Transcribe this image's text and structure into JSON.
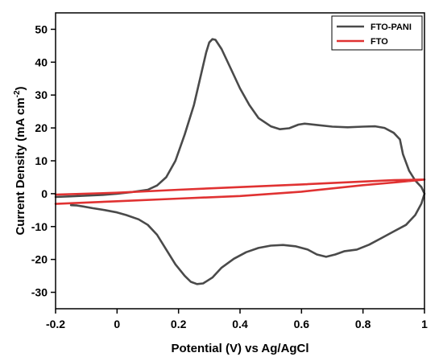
{
  "chart_data": {
    "type": "line",
    "title": "",
    "xlabel": "Potential (V) vs Ag/AgCl",
    "ylabel_main": "Current Density (mA cm",
    "ylabel_sup": "-2",
    "ylabel_end": ")",
    "xlim": [
      -0.2,
      1.0
    ],
    "ylim": [
      -35,
      55
    ],
    "xticks": [
      -0.2,
      0,
      0.2,
      0.4,
      0.6,
      0.8,
      1.0
    ],
    "xtick_labels": [
      "-0.2",
      "0",
      "0.2",
      "0.4",
      "0.6",
      "0.8",
      "1"
    ],
    "yticks": [
      -30,
      -20,
      -10,
      0,
      10,
      20,
      30,
      40,
      50
    ],
    "ytick_labels": [
      "-30",
      "-20",
      "-10",
      "0",
      "10",
      "20",
      "30",
      "40",
      "50"
    ],
    "grid": false,
    "legend_position": "top-right",
    "series": [
      {
        "name": "FTO-PANI",
        "color": "#4a4a4a",
        "points": [
          [
            -0.2,
            -1.0
          ],
          [
            -0.15,
            -0.8
          ],
          [
            -0.1,
            -0.6
          ],
          [
            -0.05,
            -0.4
          ],
          [
            0.0,
            0.0
          ],
          [
            0.05,
            0.5
          ],
          [
            0.1,
            1.2
          ],
          [
            0.13,
            2.5
          ],
          [
            0.16,
            5.0
          ],
          [
            0.19,
            10.0
          ],
          [
            0.22,
            18.0
          ],
          [
            0.25,
            27.0
          ],
          [
            0.27,
            35.0
          ],
          [
            0.29,
            43.0
          ],
          [
            0.3,
            46.0
          ],
          [
            0.31,
            47.0
          ],
          [
            0.32,
            46.8
          ],
          [
            0.34,
            44.0
          ],
          [
            0.37,
            38.0
          ],
          [
            0.4,
            32.0
          ],
          [
            0.43,
            27.0
          ],
          [
            0.46,
            23.0
          ],
          [
            0.5,
            20.5
          ],
          [
            0.53,
            19.6
          ],
          [
            0.56,
            19.9
          ],
          [
            0.59,
            21.0
          ],
          [
            0.61,
            21.3
          ],
          [
            0.65,
            20.9
          ],
          [
            0.7,
            20.4
          ],
          [
            0.75,
            20.2
          ],
          [
            0.8,
            20.4
          ],
          [
            0.84,
            20.5
          ],
          [
            0.87,
            20.0
          ],
          [
            0.9,
            18.5
          ],
          [
            0.92,
            16.5
          ],
          [
            0.93,
            12.0
          ],
          [
            0.95,
            7.0
          ],
          [
            0.97,
            4.0
          ],
          [
            0.99,
            2.0
          ],
          [
            1.0,
            0.0
          ],
          [
            0.99,
            -3.0
          ],
          [
            0.97,
            -6.5
          ],
          [
            0.94,
            -9.5
          ],
          [
            0.9,
            -11.5
          ],
          [
            0.86,
            -13.5
          ],
          [
            0.82,
            -15.5
          ],
          [
            0.78,
            -17.0
          ],
          [
            0.74,
            -17.5
          ],
          [
            0.71,
            -18.5
          ],
          [
            0.68,
            -19.2
          ],
          [
            0.65,
            -18.5
          ],
          [
            0.62,
            -17.0
          ],
          [
            0.58,
            -16.0
          ],
          [
            0.54,
            -15.6
          ],
          [
            0.5,
            -15.8
          ],
          [
            0.46,
            -16.5
          ],
          [
            0.42,
            -17.8
          ],
          [
            0.38,
            -19.8
          ],
          [
            0.34,
            -22.5
          ],
          [
            0.31,
            -25.5
          ],
          [
            0.28,
            -27.3
          ],
          [
            0.26,
            -27.5
          ],
          [
            0.24,
            -26.8
          ],
          [
            0.22,
            -25.0
          ],
          [
            0.19,
            -21.5
          ],
          [
            0.16,
            -17.0
          ],
          [
            0.13,
            -12.5
          ],
          [
            0.1,
            -9.5
          ],
          [
            0.07,
            -7.8
          ],
          [
            0.03,
            -6.5
          ],
          [
            0.0,
            -5.7
          ],
          [
            -0.04,
            -5.0
          ],
          [
            -0.08,
            -4.4
          ],
          [
            -0.11,
            -3.9
          ],
          [
            -0.13,
            -3.6
          ],
          [
            -0.15,
            -3.5
          ]
        ]
      },
      {
        "name": "FTO",
        "color": "#e03232",
        "points": [
          [
            -0.2,
            -0.3
          ],
          [
            0.0,
            0.3
          ],
          [
            0.2,
            1.2
          ],
          [
            0.4,
            2.0
          ],
          [
            0.6,
            2.8
          ],
          [
            0.8,
            3.7
          ],
          [
            0.9,
            4.1
          ],
          [
            1.0,
            4.3
          ],
          [
            0.9,
            3.4
          ],
          [
            0.8,
            2.6
          ],
          [
            0.6,
            0.6
          ],
          [
            0.4,
            -0.7
          ],
          [
            0.2,
            -1.5
          ],
          [
            0.0,
            -2.3
          ],
          [
            -0.2,
            -3.1
          ]
        ]
      }
    ]
  }
}
